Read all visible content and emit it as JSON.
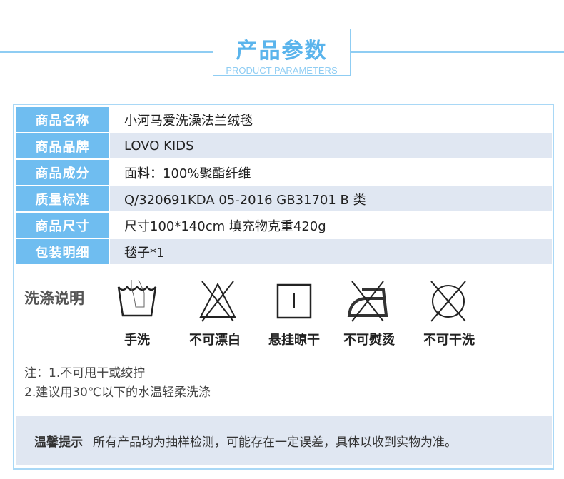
{
  "header": {
    "title": "产品参数",
    "subtitle": "PRODUCT PARAMETERS"
  },
  "params": [
    {
      "label": "商品名称",
      "value": "小河马爱洗澡法兰绒毯"
    },
    {
      "label": "商品品牌",
      "value": "LOVO  KIDS"
    },
    {
      "label": "商品成分",
      "value": "面料：100%聚酯纤维"
    },
    {
      "label": "质量标准",
      "value": "Q/320691KDA 05-2016 GB31701 B 类"
    },
    {
      "label": "商品尺寸",
      "value": "尺寸100*140cm  填充物克重420g"
    },
    {
      "label": "包装明细",
      "value": "毯子*1"
    }
  ],
  "wash": {
    "title": "洗涤说明",
    "items": [
      {
        "icon": "hand-wash-icon",
        "label": "手洗"
      },
      {
        "icon": "no-bleach-icon",
        "label": "不可漂白"
      },
      {
        "icon": "line-dry-icon",
        "label": "悬挂晾干"
      },
      {
        "icon": "no-iron-icon",
        "label": "不可熨烫"
      },
      {
        "icon": "no-dry-clean-icon",
        "label": "不可干洗"
      }
    ]
  },
  "notes": {
    "line1": "注：1.不可甩干或绞拧",
    "line2": "2.建议用30℃以下的水温轻柔洗涤"
  },
  "tip": {
    "label": "温馨提示",
    "text": "所有产品均为抽样检测，可能存在一定误差，具体以收到实物为准。"
  },
  "colors": {
    "accent": "#6fbdf0",
    "row_alt": "#e0e7f2",
    "title": "#5ab4ec"
  }
}
